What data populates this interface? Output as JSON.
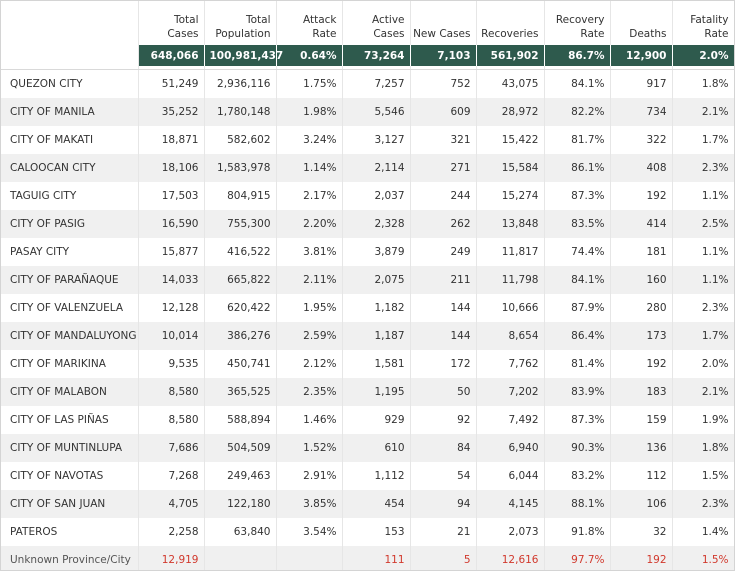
{
  "chart_data": {
    "type": "table",
    "columns": [
      "Total Cases",
      "Total Population",
      "Attack Rate",
      "Active Cases",
      "New Cases",
      "Recoveries",
      "Recovery Rate",
      "Deaths",
      "Fatality Rate"
    ],
    "header_lines": [
      [
        "Total",
        "Cases"
      ],
      [
        "Total",
        "Population"
      ],
      [
        "Attack",
        "Rate"
      ],
      [
        "Active",
        "Cases"
      ],
      [
        "",
        "New Cases"
      ],
      [
        "",
        "Recoveries"
      ],
      [
        "Recovery",
        "Rate"
      ],
      [
        "",
        "Deaths"
      ],
      [
        "Fatality",
        "Rate"
      ]
    ],
    "totals": [
      "648,066",
      "100,981,437",
      "0.64%",
      "73,264",
      "7,103",
      "561,902",
      "86.7%",
      "12,900",
      "2.0%"
    ],
    "rows": [
      {
        "name": "QUEZON CITY",
        "values": [
          "51,249",
          "2,936,116",
          "1.75%",
          "7,257",
          "752",
          "43,075",
          "84.1%",
          "917",
          "1.8%"
        ]
      },
      {
        "name": "CITY OF MANILA",
        "values": [
          "35,252",
          "1,780,148",
          "1.98%",
          "5,546",
          "609",
          "28,972",
          "82.2%",
          "734",
          "2.1%"
        ]
      },
      {
        "name": "CITY OF MAKATI",
        "values": [
          "18,871",
          "582,602",
          "3.24%",
          "3,127",
          "321",
          "15,422",
          "81.7%",
          "322",
          "1.7%"
        ]
      },
      {
        "name": "CALOOCAN CITY",
        "values": [
          "18,106",
          "1,583,978",
          "1.14%",
          "2,114",
          "271",
          "15,584",
          "86.1%",
          "408",
          "2.3%"
        ]
      },
      {
        "name": "TAGUIG CITY",
        "values": [
          "17,503",
          "804,915",
          "2.17%",
          "2,037",
          "244",
          "15,274",
          "87.3%",
          "192",
          "1.1%"
        ]
      },
      {
        "name": "CITY OF PASIG",
        "values": [
          "16,590",
          "755,300",
          "2.20%",
          "2,328",
          "262",
          "13,848",
          "83.5%",
          "414",
          "2.5%"
        ]
      },
      {
        "name": "PASAY CITY",
        "values": [
          "15,877",
          "416,522",
          "3.81%",
          "3,879",
          "249",
          "11,817",
          "74.4%",
          "181",
          "1.1%"
        ]
      },
      {
        "name": "CITY OF PARAÑAQUE",
        "values": [
          "14,033",
          "665,822",
          "2.11%",
          "2,075",
          "211",
          "11,798",
          "84.1%",
          "160",
          "1.1%"
        ]
      },
      {
        "name": "CITY OF VALENZUELA",
        "values": [
          "12,128",
          "620,422",
          "1.95%",
          "1,182",
          "144",
          "10,666",
          "87.9%",
          "280",
          "2.3%"
        ]
      },
      {
        "name": "CITY OF MANDALUYONG",
        "values": [
          "10,014",
          "386,276",
          "2.59%",
          "1,187",
          "144",
          "8,654",
          "86.4%",
          "173",
          "1.7%"
        ]
      },
      {
        "name": "CITY OF MARIKINA",
        "values": [
          "9,535",
          "450,741",
          "2.12%",
          "1,581",
          "172",
          "7,762",
          "81.4%",
          "192",
          "2.0%"
        ]
      },
      {
        "name": "CITY OF MALABON",
        "values": [
          "8,580",
          "365,525",
          "2.35%",
          "1,195",
          "50",
          "7,202",
          "83.9%",
          "183",
          "2.1%"
        ]
      },
      {
        "name": "CITY OF LAS PIÑAS",
        "values": [
          "8,580",
          "588,894",
          "1.46%",
          "929",
          "92",
          "7,492",
          "87.3%",
          "159",
          "1.9%"
        ]
      },
      {
        "name": "CITY OF MUNTINLUPA",
        "values": [
          "7,686",
          "504,509",
          "1.52%",
          "610",
          "84",
          "6,940",
          "90.3%",
          "136",
          "1.8%"
        ]
      },
      {
        "name": "CITY OF NAVOTAS",
        "values": [
          "7,268",
          "249,463",
          "2.91%",
          "1,112",
          "54",
          "6,044",
          "83.2%",
          "112",
          "1.5%"
        ]
      },
      {
        "name": "CITY OF SAN JUAN",
        "values": [
          "4,705",
          "122,180",
          "3.85%",
          "454",
          "94",
          "4,145",
          "88.1%",
          "106",
          "2.3%"
        ]
      },
      {
        "name": "PATEROS",
        "values": [
          "2,258",
          "63,840",
          "3.54%",
          "153",
          "21",
          "2,073",
          "91.8%",
          "32",
          "1.4%"
        ]
      },
      {
        "name": "Unknown Province/City",
        "values": [
          "12,919",
          "",
          "",
          "111",
          "5",
          "12,616",
          "97.7%",
          "192",
          "1.5%"
        ],
        "highlight": true
      }
    ],
    "colors": {
      "total_bar": "#2e5a4d",
      "highlight_text": "#d1392d",
      "row_stripe": "#f0f0f0"
    }
  }
}
